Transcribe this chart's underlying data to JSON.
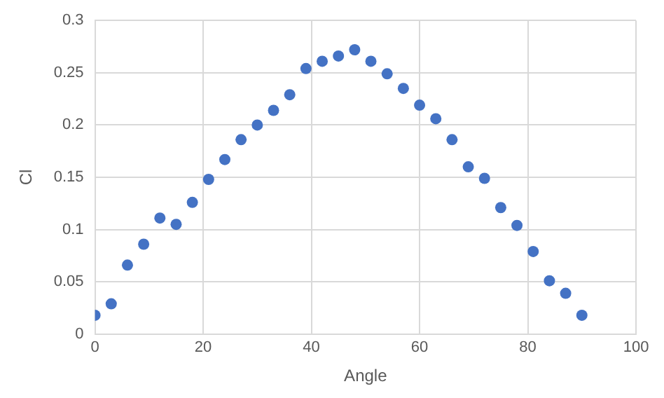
{
  "chart_data": {
    "type": "scatter",
    "xlabel": "Angle",
    "ylabel": "Cl",
    "x": [
      0,
      3,
      6,
      9,
      12,
      15,
      18,
      21,
      24,
      27,
      30,
      33,
      36,
      39,
      42,
      45,
      48,
      51,
      54,
      57,
      60,
      63,
      66,
      69,
      72,
      75,
      78,
      81,
      84,
      87,
      90
    ],
    "series": [
      {
        "color": "#4472c4",
        "values": [
          0.018,
          0.029,
          0.066,
          0.086,
          0.111,
          0.105,
          0.126,
          0.148,
          0.167,
          0.186,
          0.2,
          0.214,
          0.229,
          0.254,
          0.261,
          0.266,
          0.272,
          0.261,
          0.249,
          0.235,
          0.219,
          0.206,
          0.186,
          0.16,
          0.149,
          0.121,
          0.104,
          0.079,
          0.051,
          0.039,
          0.018
        ]
      }
    ],
    "xlim": [
      0,
      100
    ],
    "xticks": [
      0,
      20,
      40,
      60,
      80,
      100
    ],
    "ylim": [
      0,
      0.3
    ],
    "yticks": [
      0,
      0.05,
      0.1,
      0.15,
      0.2,
      0.25,
      0.3
    ],
    "grid": true,
    "marker": "circle",
    "legend": false
  }
}
